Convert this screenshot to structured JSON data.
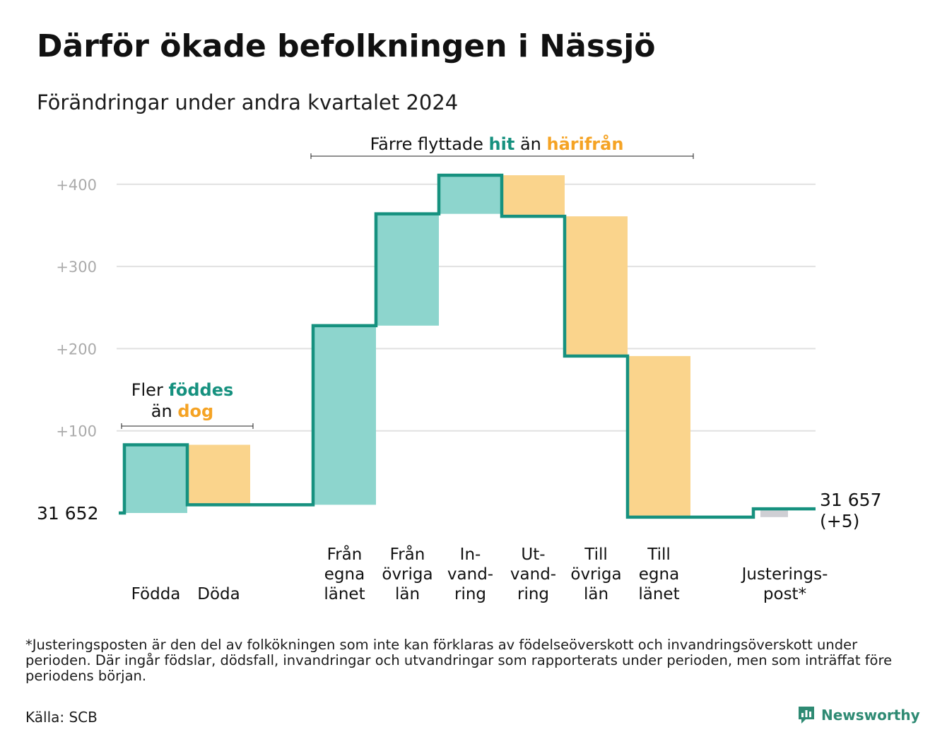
{
  "header": {
    "title": "Därför ökade befolkningen i Nässjö",
    "subtitle": "Förändringar under andra kvartalet 2024"
  },
  "chart_data": {
    "type": "waterfall",
    "baseline_label": "31  652",
    "end_label": [
      "31 657",
      "(+5)"
    ],
    "ylim": [
      -10,
      420
    ],
    "yticks": [
      {
        "value": 100,
        "label": "+100"
      },
      {
        "value": 200,
        "label": "+200"
      },
      {
        "value": 300,
        "label": "+300"
      },
      {
        "value": 400,
        "label": "+400"
      }
    ],
    "grid": true,
    "steps": [
      {
        "key": "fodda",
        "label_lines": [
          "Födda"
        ],
        "from": 0,
        "to": 83,
        "kind": "in"
      },
      {
        "key": "doda",
        "label_lines": [
          "Döda"
        ],
        "from": 83,
        "to": 10,
        "kind": "out"
      },
      {
        "key": "fran-egna-lanet",
        "label_lines": [
          "Från",
          "egna",
          "länet"
        ],
        "from": 10,
        "to": 228,
        "kind": "in"
      },
      {
        "key": "fran-ovriga-lan",
        "label_lines": [
          "Från",
          "övriga",
          "län"
        ],
        "from": 228,
        "to": 364,
        "kind": "in"
      },
      {
        "key": "invandring",
        "label_lines": [
          "In-",
          "vand-",
          "ring"
        ],
        "from": 364,
        "to": 411,
        "kind": "in"
      },
      {
        "key": "utvandring",
        "label_lines": [
          "Ut-",
          "vand-",
          "ring"
        ],
        "from": 411,
        "to": 361,
        "kind": "out"
      },
      {
        "key": "till-ovriga-lan",
        "label_lines": [
          "Till",
          "övriga",
          "län"
        ],
        "from": 361,
        "to": 191,
        "kind": "out"
      },
      {
        "key": "till-egna-lanet",
        "label_lines": [
          "Till",
          "egna",
          "länet"
        ],
        "from": 191,
        "to": -5,
        "kind": "out"
      },
      {
        "key": "justeringspost",
        "label_lines": [
          "Justerings-",
          "post*"
        ],
        "from": -5,
        "to": 5,
        "kind": "adjust"
      }
    ],
    "annotations": {
      "birth": {
        "line1_plain": "Fler ",
        "line1_hit": "föddes",
        "line2_plain": "än ",
        "line2_out": "dog"
      },
      "migration": {
        "plain1": "Färre flyttade ",
        "hit": "hit",
        "plain2": " än ",
        "out": "härifrån"
      }
    },
    "colors": {
      "in": "#8dd5cd",
      "out": "#fad48c",
      "adjust": "#cfcfd4",
      "line": "#16917f",
      "hit_text": "#16917f",
      "out_text": "#f5a324",
      "grid": "#e1e1e1",
      "tick_text": "#aaaaaa"
    }
  },
  "footnote": "*Justeringsposten är den del av folkökningen som inte kan förklaras av födelseöverskott och invandringsöverskott under perioden. Där ingår födslar, dödsfall, invandringar och utvandringar som rapporterats under perioden, men som inträffat före periodens början.",
  "source": "Källa: SCB",
  "brand": {
    "name": "Newsworthy",
    "icon": "chart-bars-icon",
    "color": "#2e8a73"
  }
}
